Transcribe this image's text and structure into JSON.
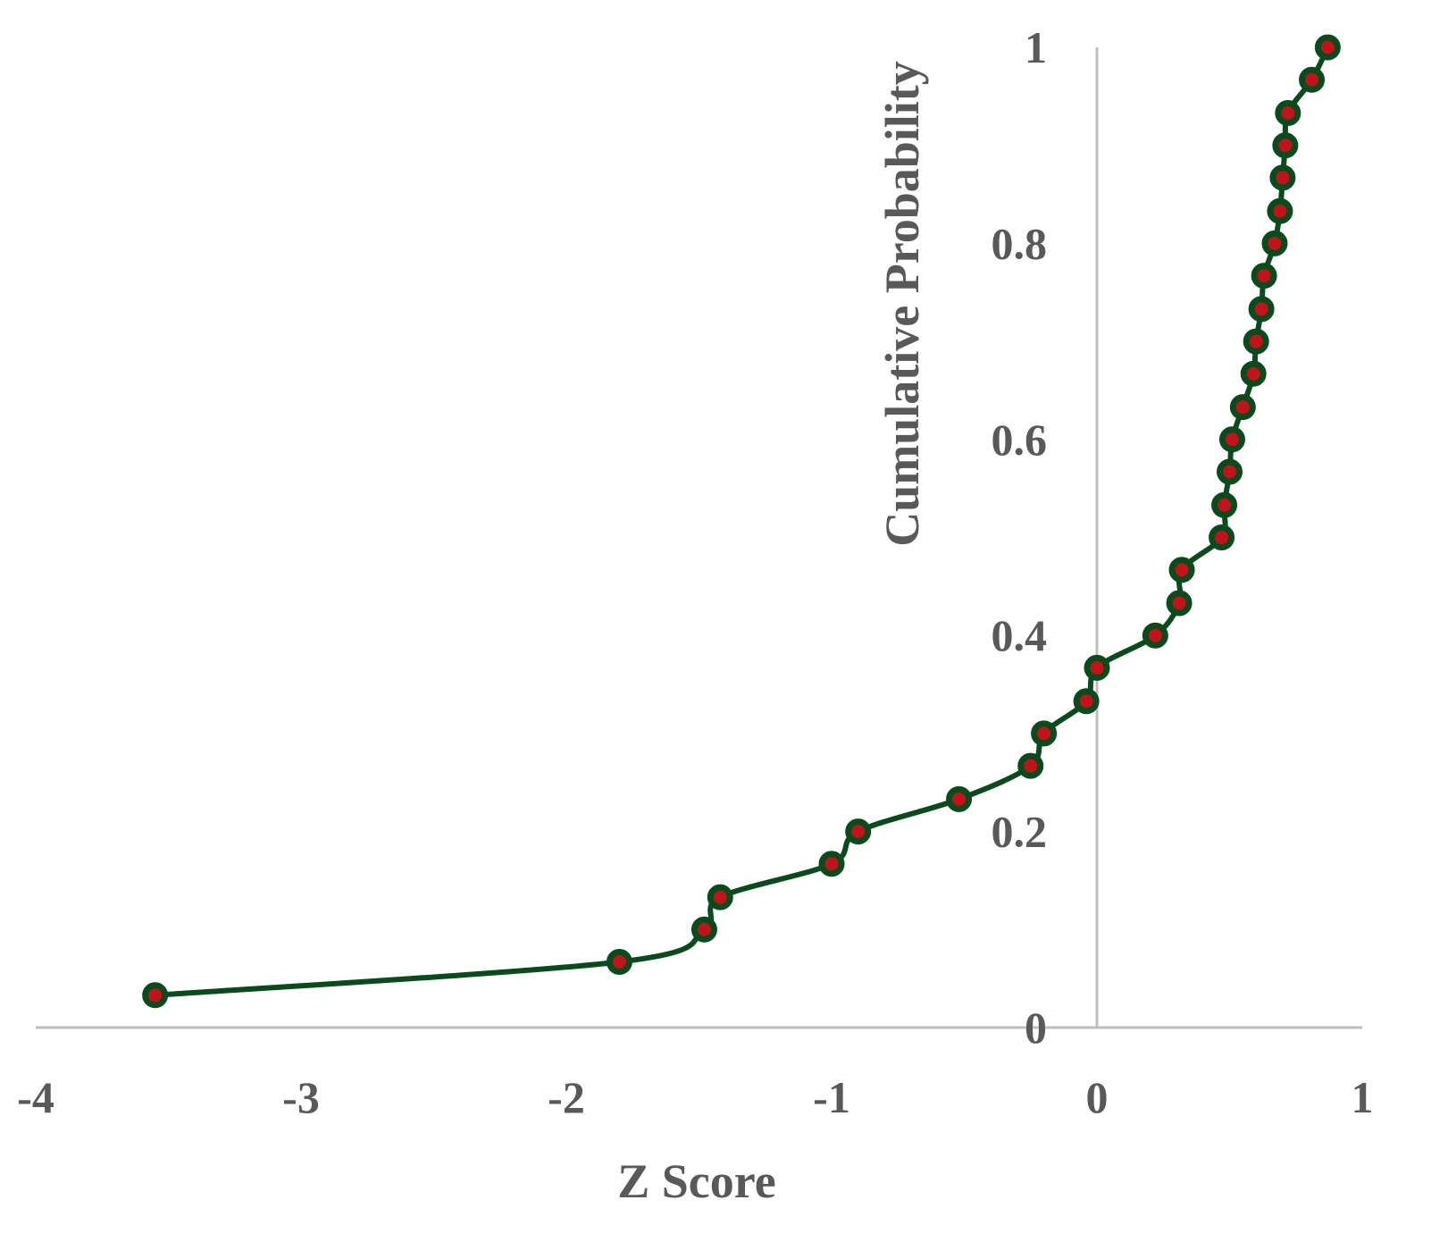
{
  "chart_data": {
    "type": "line",
    "xlabel": "Z Score",
    "ylabel": "Cumulative Probability",
    "xlim": [
      -4,
      1
    ],
    "ylim": [
      0,
      1
    ],
    "x_ticks": [
      "-4",
      "-3",
      "-2",
      "-1",
      "0",
      "1"
    ],
    "y_ticks": [
      "0",
      "0.2",
      "0.4",
      "0.6",
      "0.8",
      "1"
    ],
    "grid": false,
    "legend": "none",
    "line_color": "#0b4a1c",
    "marker_fill": "#c0141c",
    "marker_edge": "#0b4a1c",
    "axis_color": "#bfbfbf",
    "series": [
      {
        "x": [
          -3.55,
          -1.8,
          -1.48,
          -1.42,
          -1.0,
          -0.9,
          -0.52,
          -0.25,
          -0.2,
          -0.04,
          0.0,
          0.22,
          0.31,
          0.32,
          0.47,
          0.48,
          0.5,
          0.51,
          0.55,
          0.59,
          0.6,
          0.62,
          0.63,
          0.67,
          0.69,
          0.7,
          0.71,
          0.72,
          0.81,
          0.87
        ],
        "y": [
          0.033,
          0.067,
          0.1,
          0.133,
          0.167,
          0.2,
          0.233,
          0.267,
          0.3,
          0.333,
          0.367,
          0.4,
          0.433,
          0.467,
          0.5,
          0.533,
          0.567,
          0.6,
          0.633,
          0.667,
          0.7,
          0.733,
          0.767,
          0.8,
          0.833,
          0.867,
          0.9,
          0.933,
          0.967,
          1.0
        ]
      }
    ]
  }
}
